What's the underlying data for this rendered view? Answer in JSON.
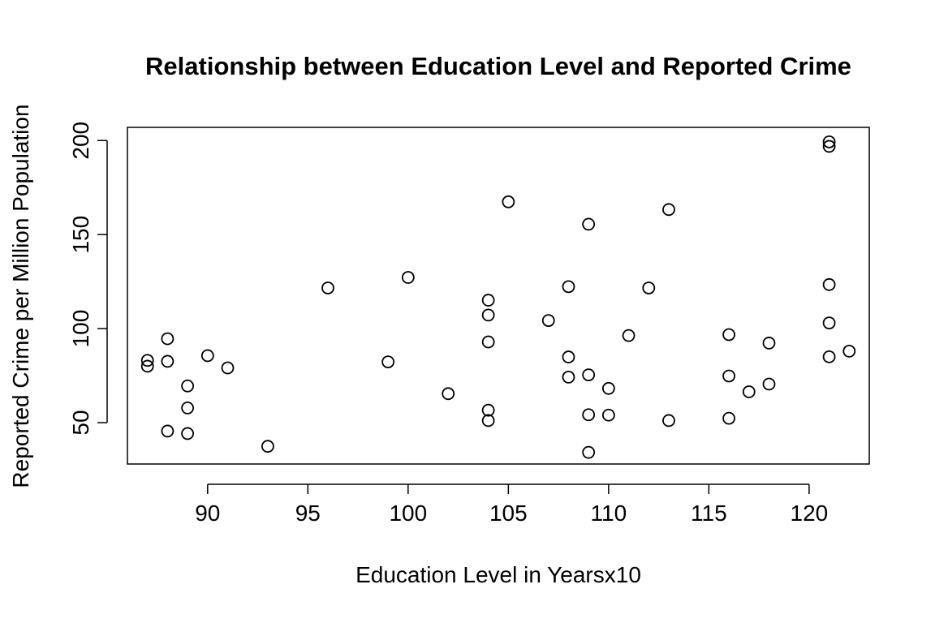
{
  "chart_data": {
    "type": "scatter",
    "title": "Relationship between Education Level and Reported Crime",
    "xlabel": "Education Level in Yearsx10",
    "ylabel": "Reported Crime per Million Population",
    "xlim": [
      86.0,
      123.0
    ],
    "ylim": [
      28.0,
      207.0
    ],
    "xticks": [
      90,
      95,
      100,
      105,
      110,
      115,
      120
    ],
    "yticks": [
      50,
      100,
      150,
      200
    ],
    "grid": false,
    "legend": "none",
    "marker": "open-circle",
    "points": [
      {
        "x": 87,
        "y": 83.1
      },
      {
        "x": 87,
        "y": 80.0
      },
      {
        "x": 88,
        "y": 94.6
      },
      {
        "x": 88,
        "y": 82.6
      },
      {
        "x": 88,
        "y": 45.5
      },
      {
        "x": 89,
        "y": 69.5
      },
      {
        "x": 89,
        "y": 57.8
      },
      {
        "x": 89,
        "y": 44.2
      },
      {
        "x": 90,
        "y": 85.6
      },
      {
        "x": 91,
        "y": 79.1
      },
      {
        "x": 93,
        "y": 37.4
      },
      {
        "x": 96,
        "y": 121.6
      },
      {
        "x": 99,
        "y": 82.3
      },
      {
        "x": 100,
        "y": 127.2
      },
      {
        "x": 102,
        "y": 65.4
      },
      {
        "x": 104,
        "y": 115.1
      },
      {
        "x": 104,
        "y": 107.2
      },
      {
        "x": 104,
        "y": 92.9
      },
      {
        "x": 104,
        "y": 56.6
      },
      {
        "x": 104,
        "y": 51.1
      },
      {
        "x": 105,
        "y": 167.4
      },
      {
        "x": 107,
        "y": 104.3
      },
      {
        "x": 108,
        "y": 122.3
      },
      {
        "x": 108,
        "y": 84.9
      },
      {
        "x": 108,
        "y": 74.2
      },
      {
        "x": 109,
        "y": 155.5
      },
      {
        "x": 109,
        "y": 75.4
      },
      {
        "x": 109,
        "y": 54.2
      },
      {
        "x": 109,
        "y": 34.2
      },
      {
        "x": 110,
        "y": 68.2
      },
      {
        "x": 110,
        "y": 54.0
      },
      {
        "x": 111,
        "y": 96.3
      },
      {
        "x": 112,
        "y": 121.6
      },
      {
        "x": 113,
        "y": 163.3
      },
      {
        "x": 113,
        "y": 51.1
      },
      {
        "x": 116,
        "y": 96.8
      },
      {
        "x": 116,
        "y": 74.8
      },
      {
        "x": 116,
        "y": 52.3
      },
      {
        "x": 117,
        "y": 66.4
      },
      {
        "x": 118,
        "y": 92.3
      },
      {
        "x": 118,
        "y": 70.5
      },
      {
        "x": 121,
        "y": 199.3
      },
      {
        "x": 121,
        "y": 196.9
      },
      {
        "x": 121,
        "y": 123.4
      },
      {
        "x": 121,
        "y": 103.0
      },
      {
        "x": 121,
        "y": 85.0
      },
      {
        "x": 122,
        "y": 88.0
      }
    ],
    "colors": {
      "marker_stroke": "#000000",
      "axis": "#000000",
      "background": "#ffffff"
    }
  }
}
